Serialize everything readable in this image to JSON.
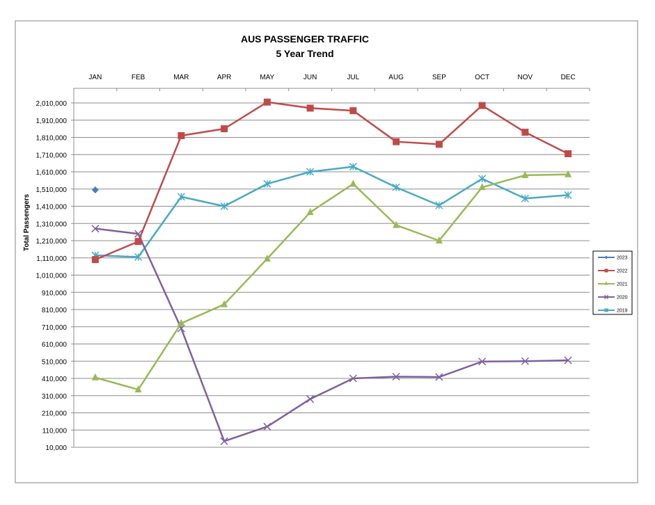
{
  "chart_data": {
    "type": "line",
    "title": "AUS PASSENGER TRAFFIC",
    "subtitle": "5 Year Trend",
    "ylabel": "Total Passengers",
    "categories": [
      "JAN",
      "FEB",
      "MAR",
      "APR",
      "MAY",
      "JUN",
      "JUL",
      "AUG",
      "SEP",
      "OCT",
      "NOV",
      "DEC"
    ],
    "ylim": [
      10000,
      2060000
    ],
    "yticks": [
      10000,
      110000,
      210000,
      310000,
      410000,
      510000,
      610000,
      710000,
      810000,
      910000,
      1010000,
      1110000,
      1210000,
      1310000,
      1410000,
      1510000,
      1610000,
      1710000,
      1810000,
      1910000,
      2010000
    ],
    "ytick_labels": [
      "10,000",
      "110,000",
      "210,000",
      "310,000",
      "410,000",
      "510,000",
      "610,000",
      "710,000",
      "810,000",
      "910,000",
      "1,010,000",
      "1,110,000",
      "1,210,000",
      "1,310,000",
      "1,410,000",
      "1,510,000",
      "1,610,000",
      "1,710,000",
      "1,810,000",
      "1,910,000",
      "2,010,000"
    ],
    "grid": "horizontal",
    "legend_position": "right",
    "series": [
      {
        "name": "2023",
        "color": "#4a7ebb",
        "marker": "diamond",
        "values": [
          1505000,
          null,
          null,
          null,
          null,
          null,
          null,
          null,
          null,
          null,
          null,
          null
        ]
      },
      {
        "name": "2022",
        "color": "#be4b48",
        "marker": "square",
        "values": [
          1100000,
          1205000,
          1820000,
          1860000,
          2015000,
          1980000,
          1965000,
          1785000,
          1770000,
          1995000,
          1840000,
          1715000
        ]
      },
      {
        "name": "2021",
        "color": "#98b954",
        "marker": "triangle",
        "values": [
          415000,
          345000,
          730000,
          840000,
          1105000,
          1375000,
          1540000,
          1300000,
          1210000,
          1520000,
          1590000,
          1595000
        ]
      },
      {
        "name": "2020",
        "color": "#7d60a0",
        "marker": "x",
        "values": [
          1280000,
          1250000,
          700000,
          45000,
          130000,
          290000,
          410000,
          420000,
          418000,
          508000,
          510000,
          515000
        ]
      },
      {
        "name": "2019",
        "color": "#46aac5",
        "marker": "star",
        "values": [
          1125000,
          1115000,
          1465000,
          1410000,
          1540000,
          1610000,
          1640000,
          1520000,
          1415000,
          1570000,
          1455000,
          1475000
        ]
      }
    ]
  }
}
